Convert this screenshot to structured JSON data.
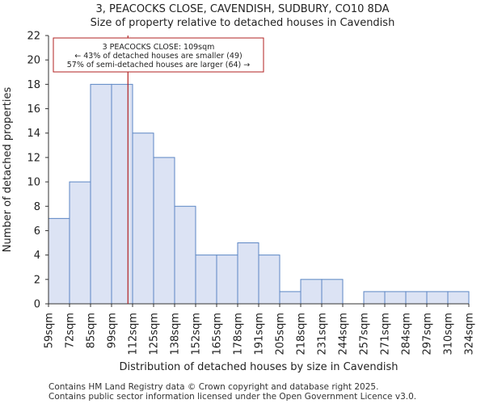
{
  "chart_data": {
    "type": "histogram",
    "title": "3, PEACOCKS CLOSE, CAVENDISH, SUDBURY, CO10 8DA",
    "subtitle": "Size of property relative to detached houses in Cavendish",
    "xlabel": "Distribution of detached houses by size in Cavendish",
    "ylabel": "Number of detached properties",
    "categories": [
      "59sqm",
      "72sqm",
      "85sqm",
      "99sqm",
      "112sqm",
      "125sqm",
      "138sqm",
      "152sqm",
      "165sqm",
      "178sqm",
      "191sqm",
      "205sqm",
      "218sqm",
      "231sqm",
      "244sqm",
      "257sqm",
      "271sqm",
      "284sqm",
      "297sqm",
      "310sqm",
      "324sqm"
    ],
    "values": [
      7,
      10,
      18,
      18,
      14,
      12,
      8,
      4,
      4,
      5,
      4,
      1,
      2,
      2,
      0,
      1,
      1,
      1,
      1,
      1
    ],
    "ylim": [
      0,
      22
    ],
    "yticks": [
      0,
      2,
      4,
      6,
      8,
      10,
      12,
      14,
      16,
      18,
      20,
      22
    ],
    "grid": false,
    "bar_color": "#dce3f4",
    "bar_edge_color": "#5b86c4",
    "marker": {
      "value_sqm": 109,
      "bin_position": 3.78,
      "color": "#b22222",
      "annotation_lines": [
        "3 PEACOCKS CLOSE: 109sqm",
        "← 43% of detached houses are smaller (49)",
        "57% of semi-detached houses are larger (64) →"
      ]
    }
  },
  "footer": {
    "line1": "Contains HM Land Registry data © Crown copyright and database right 2025.",
    "line2": "Contains public sector information licensed under the Open Government Licence v3.0."
  }
}
